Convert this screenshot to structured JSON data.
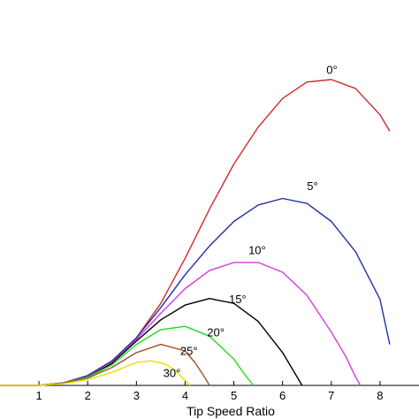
{
  "chart_data": {
    "type": "line",
    "xlabel": "Tip Speed Ratio",
    "ylabel": "",
    "title": "",
    "xlim": [
      0.2,
      8.8
    ],
    "ylim": [
      0,
      0.47
    ],
    "xticks": [
      "1",
      "2",
      "3",
      "4",
      "5",
      "6",
      "7",
      "8"
    ],
    "grid": false,
    "series": [
      {
        "name": "0°",
        "color": "#d62728",
        "x": [
          0,
          1,
          1.5,
          2,
          2.5,
          3,
          3.5,
          4,
          4.5,
          5,
          5.5,
          6,
          6.5,
          7,
          7.5,
          8,
          8.2
        ],
        "y": [
          0,
          0,
          0.003,
          0.012,
          0.03,
          0.058,
          0.1,
          0.155,
          0.215,
          0.27,
          0.315,
          0.35,
          0.37,
          0.373,
          0.362,
          0.33,
          0.31
        ],
        "label_x": 6.9,
        "label_y": 0.38
      },
      {
        "name": "5°",
        "color": "#1f2fa8",
        "x": [
          0,
          1,
          1.5,
          2,
          2.5,
          3,
          3.5,
          4,
          4.5,
          5,
          5.5,
          6,
          6.5,
          7,
          7.5,
          8,
          8.2
        ],
        "y": [
          0,
          0,
          0.003,
          0.012,
          0.03,
          0.058,
          0.095,
          0.135,
          0.17,
          0.2,
          0.22,
          0.228,
          0.222,
          0.2,
          0.163,
          0.105,
          0.05
        ],
        "label_x": 6.5,
        "label_y": 0.238
      },
      {
        "name": "10°",
        "color": "#d63cd6",
        "x": [
          0,
          1,
          1.5,
          2,
          2.5,
          3,
          3.5,
          4,
          4.5,
          5,
          5.5,
          6,
          6.5,
          7,
          7.3,
          7.5,
          7.6
        ],
        "y": [
          0,
          0,
          0.003,
          0.01,
          0.028,
          0.056,
          0.088,
          0.118,
          0.14,
          0.15,
          0.15,
          0.138,
          0.11,
          0.065,
          0.035,
          0.01,
          0
        ],
        "label_x": 5.3,
        "label_y": 0.16
      },
      {
        "name": "15°",
        "color": "#000000",
        "x": [
          0,
          1,
          1.5,
          2,
          2.5,
          3,
          3.5,
          4,
          4.5,
          5,
          5.5,
          6,
          6.2,
          6.4
        ],
        "y": [
          0,
          0,
          0.003,
          0.01,
          0.027,
          0.054,
          0.08,
          0.098,
          0.106,
          0.1,
          0.078,
          0.04,
          0.02,
          0
        ],
        "label_x": 4.9,
        "label_y": 0.1
      },
      {
        "name": "20°",
        "color": "#22dd22",
        "x": [
          0,
          1,
          1.5,
          2,
          2.5,
          3,
          3.5,
          4,
          4.5,
          5,
          5.2,
          5.4
        ],
        "y": [
          0,
          0,
          0.003,
          0.01,
          0.025,
          0.05,
          0.068,
          0.072,
          0.06,
          0.032,
          0.015,
          0
        ],
        "label_x": 4.45,
        "label_y": 0.06
      },
      {
        "name": "25°",
        "color": "#a0522d",
        "x": [
          0,
          1,
          1.5,
          2,
          2.5,
          3,
          3.5,
          4,
          4.2,
          4.4,
          4.5
        ],
        "y": [
          0,
          0,
          0.003,
          0.009,
          0.022,
          0.04,
          0.05,
          0.042,
          0.028,
          0.01,
          0
        ],
        "label_x": 3.9,
        "label_y": 0.037
      },
      {
        "name": "30°",
        "color": "#e8e000",
        "x": [
          0,
          1,
          1.5,
          2,
          2.5,
          3,
          3.3,
          3.6,
          3.8,
          4,
          4.1
        ],
        "y": [
          0,
          0,
          0.002,
          0.007,
          0.016,
          0.028,
          0.03,
          0.026,
          0.018,
          0.006,
          0
        ],
        "label_x": 3.55,
        "label_y": 0.01
      }
    ]
  }
}
